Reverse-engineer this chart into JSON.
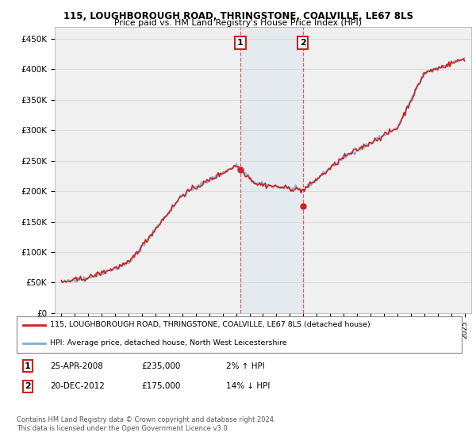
{
  "title": "115, LOUGHBOROUGH ROAD, THRINGSTONE, COALVILLE, LE67 8LS",
  "subtitle": "Price paid vs. HM Land Registry's House Price Index (HPI)",
  "background_color": "#ffffff",
  "plot_bg_color": "#f0f0f0",
  "grid_color": "#dddddd",
  "hpi_line_color": "#7ab0d4",
  "price_line_color": "#cc2222",
  "t1_x": 2008.32,
  "t1_y": 235000,
  "t2_x": 2012.97,
  "t2_y": 175000,
  "legend_line1": "115, LOUGHBOROUGH ROAD, THRINGSTONE, COALVILLE, LE67 8LS (detached house)",
  "legend_line2": "HPI: Average price, detached house, North West Leicestershire",
  "t1_date": "25-APR-2008",
  "t1_price": "£235,000",
  "t1_hpi": "2% ↑ HPI",
  "t2_date": "20-DEC-2012",
  "t2_price": "£175,000",
  "t2_hpi": "14% ↓ HPI",
  "footer": "Contains HM Land Registry data © Crown copyright and database right 2024.\nThis data is licensed under the Open Government Licence v3.0.",
  "yticks": [
    0,
    50000,
    100000,
    150000,
    200000,
    250000,
    300000,
    350000,
    400000,
    450000
  ],
  "ylabels": [
    "£0",
    "£50K",
    "£100K",
    "£150K",
    "£200K",
    "£250K",
    "£300K",
    "£350K",
    "£400K",
    "£450K"
  ],
  "xmin": 1994.5,
  "xmax": 2025.5,
  "ymin": 0,
  "ymax": 470000
}
